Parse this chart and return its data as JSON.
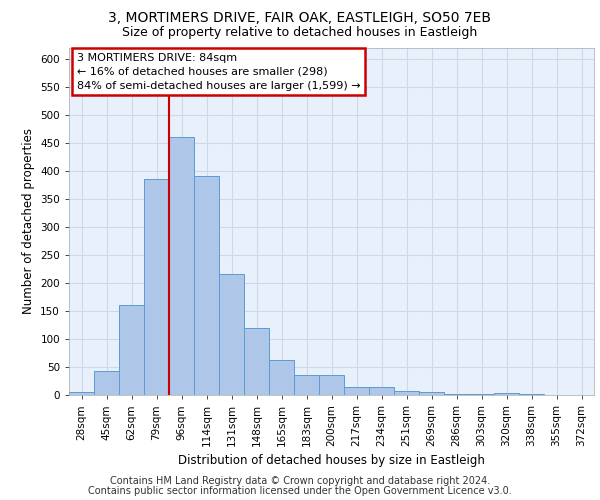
{
  "title_line1": "3, MORTIMERS DRIVE, FAIR OAK, EASTLEIGH, SO50 7EB",
  "title_line2": "Size of property relative to detached houses in Eastleigh",
  "xlabel": "Distribution of detached houses by size in Eastleigh",
  "ylabel": "Number of detached properties",
  "categories": [
    "28sqm",
    "45sqm",
    "62sqm",
    "79sqm",
    "96sqm",
    "114sqm",
    "131sqm",
    "148sqm",
    "165sqm",
    "183sqm",
    "200sqm",
    "217sqm",
    "234sqm",
    "251sqm",
    "269sqm",
    "286sqm",
    "303sqm",
    "320sqm",
    "338sqm",
    "355sqm",
    "372sqm"
  ],
  "values": [
    5,
    42,
    160,
    385,
    460,
    390,
    215,
    120,
    62,
    35,
    35,
    15,
    15,
    8,
    5,
    1,
    1,
    4,
    1,
    0,
    0
  ],
  "bar_color": "#aec6e8",
  "bar_edge_color": "#5b9bd5",
  "vline_x_index": 4,
  "vline_color": "#cc0000",
  "annotation_text": "3 MORTIMERS DRIVE: 84sqm\n← 16% of detached houses are smaller (298)\n84% of semi-detached houses are larger (1,599) →",
  "annotation_box_color": "#ffffff",
  "annotation_border_color": "#cc0000",
  "ylim": [
    0,
    620
  ],
  "yticks": [
    0,
    50,
    100,
    150,
    200,
    250,
    300,
    350,
    400,
    450,
    500,
    550,
    600
  ],
  "grid_color": "#d0d8e8",
  "bg_color": "#e8f0fb",
  "footer_line1": "Contains HM Land Registry data © Crown copyright and database right 2024.",
  "footer_line2": "Contains public sector information licensed under the Open Government Licence v3.0.",
  "title_fontsize": 10,
  "subtitle_fontsize": 9,
  "label_fontsize": 8.5,
  "tick_fontsize": 7.5,
  "footer_fontsize": 7,
  "annotation_fontsize": 8
}
